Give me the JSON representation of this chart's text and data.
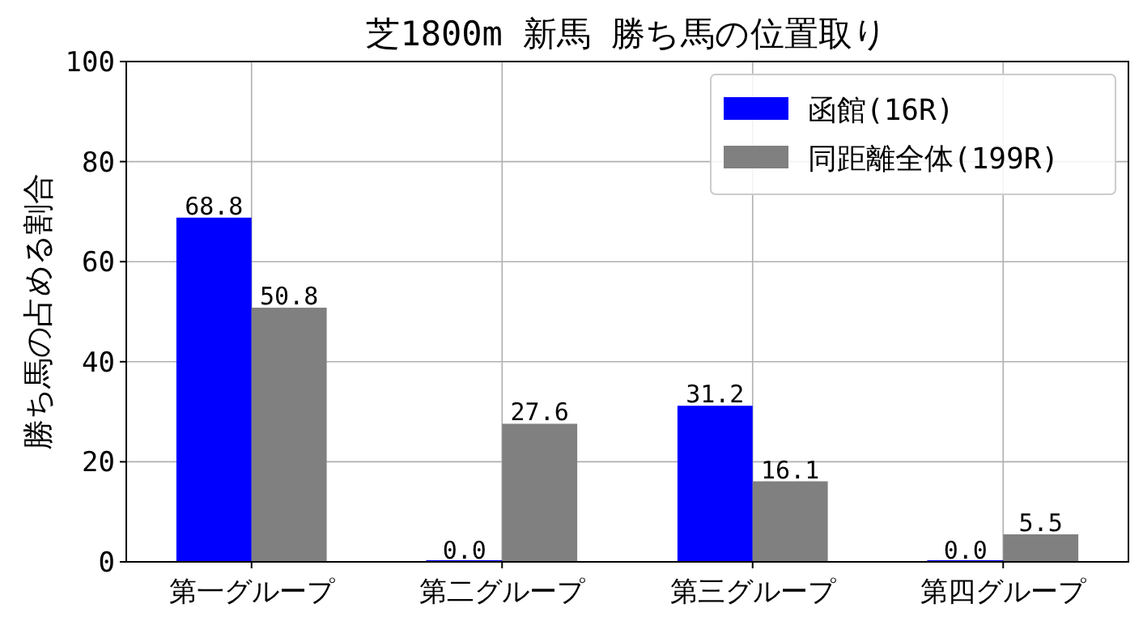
{
  "chart_data": {
    "type": "bar",
    "title": "芝1800m 新馬 勝ち馬の位置取り",
    "ylabel": "勝ち馬の占める割合",
    "categories": [
      "第一グループ",
      "第二グループ",
      "第三グループ",
      "第四グループ"
    ],
    "series": [
      {
        "name": "函館(16R)",
        "color": "#0000ff",
        "values": [
          68.8,
          0.0,
          31.2,
          0.0
        ],
        "value_labels": [
          "68.8",
          "0.0",
          "31.2",
          "0.0"
        ]
      },
      {
        "name": "同距離全体(199R)",
        "color": "#808080",
        "values": [
          50.8,
          27.6,
          16.1,
          5.5
        ],
        "value_labels": [
          "50.8",
          "27.6",
          "16.1",
          "5.5"
        ]
      }
    ],
    "ylim": [
      0,
      100
    ],
    "yticks": [
      0,
      20,
      40,
      60,
      80,
      100
    ],
    "grid": true,
    "legend": "top right"
  }
}
